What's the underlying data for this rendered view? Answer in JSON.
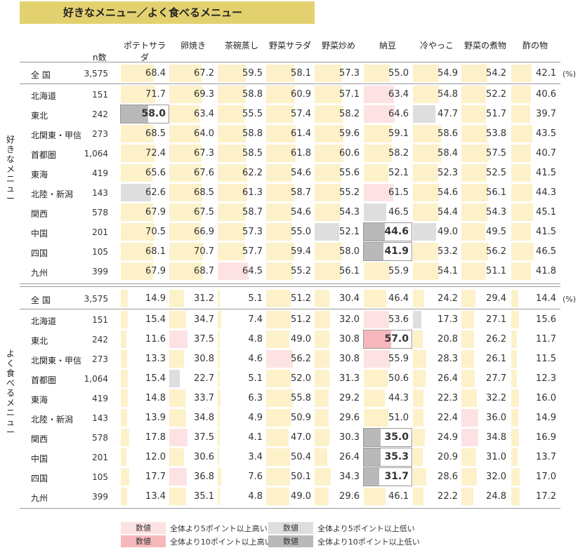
{
  "title": "好きなメニュー／よく食べるメニュー",
  "n_label": "n数",
  "percent_label": "(%)",
  "side_labels": [
    "好きなメニュー",
    "よく食べるメニュー"
  ],
  "legend": {
    "items": [
      {
        "swatch": "数値",
        "text": "全体より5ポイント以上高い",
        "color": "#fde2e4"
      },
      {
        "swatch": "数値",
        "text": "全体より10ポイント以上高い",
        "color": "#f7b8bd"
      },
      {
        "swatch": "数値",
        "text": "全体より5ポイント以上低い",
        "color": "#dedede"
      },
      {
        "swatch": "数値",
        "text": "全体より10ポイント以上低い",
        "color": "#b9b9b9"
      }
    ]
  },
  "chart_data": {
    "type": "table",
    "columns": [
      "ポテトサラダ",
      "卵焼き",
      "茶碗蒸し",
      "野菜サラダ",
      "野菜炒め",
      "納豆",
      "冷やっこ",
      "野菜の煮物",
      "酢の物"
    ],
    "regions": [
      "全 国",
      "北海道",
      "東北",
      "北関東・甲信",
      "首都圏",
      "東海",
      "北陸・新潟",
      "関西",
      "中国",
      "四国",
      "九州"
    ],
    "n": [
      "3,575",
      "151",
      "242",
      "273",
      "1,064",
      "419",
      "143",
      "578",
      "201",
      "105",
      "399"
    ],
    "sections": [
      {
        "name": "好きなメニュー",
        "values": [
          [
            68.4,
            67.2,
            59.5,
            58.1,
            57.3,
            55.0,
            54.9,
            54.2,
            42.1
          ],
          [
            71.7,
            69.3,
            58.8,
            60.9,
            57.1,
            63.4,
            54.8,
            52.2,
            40.6
          ],
          [
            58.0,
            63.4,
            55.5,
            57.4,
            58.2,
            64.6,
            47.7,
            51.7,
            39.7
          ],
          [
            68.5,
            64.0,
            58.8,
            61.4,
            59.6,
            59.1,
            58.6,
            53.8,
            43.5
          ],
          [
            72.4,
            67.3,
            58.5,
            61.8,
            60.6,
            58.2,
            58.4,
            57.5,
            40.7
          ],
          [
            65.6,
            67.6,
            62.2,
            54.6,
            55.6,
            52.1,
            52.3,
            52.5,
            41.5
          ],
          [
            62.6,
            68.5,
            61.3,
            58.7,
            55.2,
            61.5,
            54.6,
            56.1,
            44.3
          ],
          [
            67.9,
            67.5,
            58.7,
            54.6,
            54.3,
            46.5,
            54.4,
            54.3,
            45.1
          ],
          [
            70.5,
            66.9,
            57.3,
            55.0,
            52.1,
            44.6,
            49.0,
            49.5,
            41.5
          ],
          [
            68.1,
            70.7,
            57.7,
            59.4,
            58.0,
            41.9,
            53.2,
            56.2,
            46.5
          ],
          [
            67.9,
            68.7,
            64.5,
            55.2,
            56.1,
            55.9,
            54.1,
            51.1,
            41.8
          ]
        ]
      },
      {
        "name": "よく食べるメニュー",
        "values": [
          [
            14.9,
            31.2,
            5.1,
            51.2,
            30.4,
            46.4,
            24.2,
            29.4,
            14.4
          ],
          [
            15.4,
            34.7,
            7.4,
            51.2,
            32.0,
            53.6,
            17.3,
            27.1,
            15.6
          ],
          [
            11.6,
            37.5,
            4.8,
            49.0,
            30.8,
            57.0,
            20.8,
            26.2,
            11.7
          ],
          [
            13.3,
            30.8,
            4.6,
            56.2,
            30.8,
            55.9,
            28.3,
            26.1,
            11.5
          ],
          [
            15.4,
            22.7,
            5.1,
            52.0,
            31.3,
            50.6,
            26.4,
            27.7,
            12.3
          ],
          [
            14.8,
            33.7,
            6.3,
            55.8,
            29.2,
            44.3,
            22.3,
            32.2,
            16.0
          ],
          [
            13.9,
            34.8,
            4.9,
            50.9,
            29.6,
            51.0,
            22.4,
            36.0,
            14.9
          ],
          [
            17.8,
            37.5,
            4.1,
            47.0,
            30.3,
            35.0,
            24.9,
            34.8,
            16.9
          ],
          [
            12.0,
            30.6,
            3.4,
            50.4,
            26.4,
            35.3,
            20.9,
            31.0,
            13.7
          ],
          [
            17.7,
            36.8,
            7.6,
            50.1,
            34.3,
            31.7,
            28.6,
            32.0,
            17.0
          ],
          [
            13.4,
            35.1,
            4.8,
            49.0,
            29.6,
            46.1,
            22.2,
            24.8,
            17.2
          ]
        ]
      }
    ]
  }
}
